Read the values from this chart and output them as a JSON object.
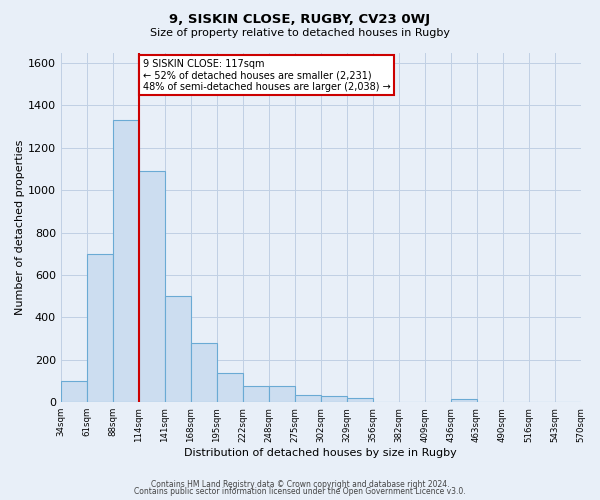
{
  "title": "9, SISKIN CLOSE, RUGBY, CV23 0WJ",
  "subtitle": "Size of property relative to detached houses in Rugby",
  "xlabel": "Distribution of detached houses by size in Rugby",
  "ylabel": "Number of detached properties",
  "bar_values": [
    100,
    700,
    1330,
    1090,
    500,
    280,
    140,
    75,
    75,
    35,
    30,
    20,
    0,
    0,
    0,
    15,
    0,
    0,
    0,
    0
  ],
  "bin_labels": [
    "34sqm",
    "61sqm",
    "88sqm",
    "114sqm",
    "141sqm",
    "168sqm",
    "195sqm",
    "222sqm",
    "248sqm",
    "275sqm",
    "302sqm",
    "329sqm",
    "356sqm",
    "382sqm",
    "409sqm",
    "436sqm",
    "463sqm",
    "490sqm",
    "516sqm",
    "543sqm",
    "570sqm"
  ],
  "bar_color": "#ccddf0",
  "bar_edge_color": "#6aaad4",
  "vline_x_index": 3,
  "vline_color": "#cc0000",
  "annotation_text": "9 SISKIN CLOSE: 117sqm\n← 52% of detached houses are smaller (2,231)\n48% of semi-detached houses are larger (2,038) →",
  "annotation_box_color": "#ffffff",
  "annotation_box_edge_color": "#cc0000",
  "ylim_max": 1650,
  "yticks": [
    0,
    200,
    400,
    600,
    800,
    1000,
    1200,
    1400,
    1600
  ],
  "footer_line1": "Contains HM Land Registry data © Crown copyright and database right 2024.",
  "footer_line2": "Contains public sector information licensed under the Open Government Licence v3.0.",
  "background_color": "#e8eff8",
  "plot_bg_color": "#e8eff8",
  "grid_color": "#c0d0e4"
}
